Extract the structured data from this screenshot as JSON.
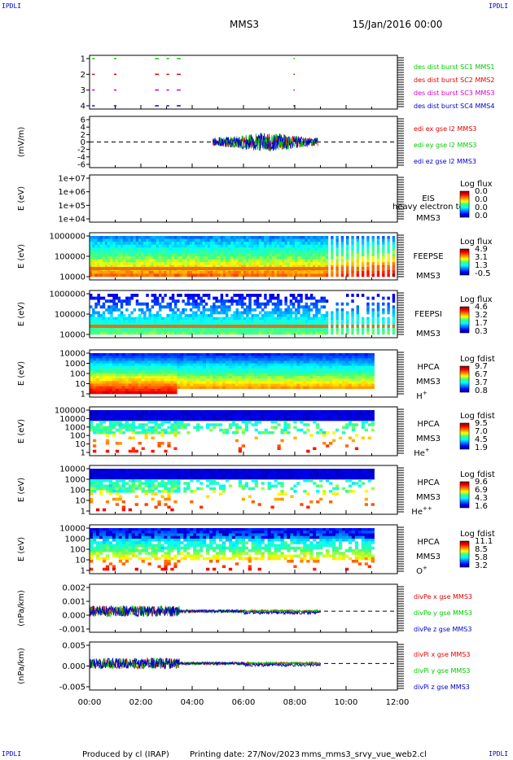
{
  "header": {
    "corner_label": "IPDLI",
    "spacecraft": "MMS3",
    "date": "15/Jan/2016 00:00"
  },
  "colors": {
    "red": "#e00000",
    "green": "#00c800",
    "blue": "#0000cc",
    "magenta": "#cc00cc",
    "dashed_line": "#000000"
  },
  "time_axis": {
    "ticks": [
      "00:00",
      "02:00",
      "04:00",
      "06:00",
      "08:00",
      "10:00",
      "12:00"
    ],
    "range_hours": [
      0,
      12
    ]
  },
  "footer": {
    "producer": "Produced by cl (IRAP)",
    "printing_date": "Printing date: 27/Nov/2023",
    "file": "mms_mms3_srvy_vue_web2.cl"
  },
  "chart_data": [
    {
      "id": "burst",
      "type": "scatter",
      "yticks": [
        "1",
        "2",
        "3",
        "4"
      ],
      "ylim": [
        0.5,
        4.5
      ],
      "series": [
        {
          "name": "des dist burst SC1 MMS1",
          "color": "#00c800",
          "y": 4
        },
        {
          "name": "des dist burst SC2 MMS2",
          "color": "#e00000",
          "y": 3
        },
        {
          "name": "des dist burst SC3 MMS3",
          "color": "#cc00cc",
          "y": 2
        },
        {
          "name": "des dist burst SC4 MMS4",
          "color": "#0000cc",
          "y": 1
        }
      ],
      "intervals_hours": [
        [
          0.1,
          0.2
        ],
        [
          0.95,
          1.05
        ],
        [
          2.55,
          2.7
        ],
        [
          3.0,
          3.1
        ],
        [
          3.4,
          3.55
        ],
        [
          7.95,
          8.0
        ]
      ]
    },
    {
      "id": "edi",
      "type": "line",
      "ylabel": "(mV/m)",
      "yticks": [
        "6",
        "4",
        "2",
        "0",
        "-2",
        "-4",
        "-6"
      ],
      "ylim": [
        -7,
        7
      ],
      "data_range_hours": [
        4.8,
        8.9
      ],
      "series": [
        {
          "name": "edi ex gse l2 MMS3",
          "color": "#e00000"
        },
        {
          "name": "edi ey gse l2 MMS3",
          "color": "#00c800"
        },
        {
          "name": "edi ez gse l2 MMS3",
          "color": "#0000cc"
        }
      ]
    },
    {
      "id": "eis",
      "type": "heatmap",
      "ylabel": "E (eV)",
      "yticks": [
        "1e+07",
        "1e+06",
        "1e+05",
        "1e+04"
      ],
      "instrument": "EIS",
      "spacecraft": "MMS3",
      "cbar_title": "Log flux",
      "cbar_values": [
        "0.0",
        "0.0",
        "0.0",
        "0.0"
      ],
      "note": "heavy electron to"
    },
    {
      "id": "feepse",
      "type": "heatmap",
      "ylabel": "E (eV)",
      "yticks": [
        "1000000",
        "100000",
        "10000"
      ],
      "instrument": "FEEPSE",
      "spacecraft": "MMS3",
      "cbar_title": "Log flux",
      "cbar_values": [
        "4.9",
        "3.1",
        "1.3",
        "-0.5"
      ]
    },
    {
      "id": "feepsi",
      "type": "heatmap",
      "ylabel": "E (eV)",
      "yticks": [
        "1000000",
        "100000",
        "10000"
      ],
      "instrument": "FEEPSI",
      "spacecraft": "MMS3",
      "cbar_title": "Log flux",
      "cbar_values": [
        "4.6",
        "3.2",
        "1.7",
        "0.3"
      ]
    },
    {
      "id": "hpca_h",
      "type": "heatmap",
      "ylabel": "E (eV)",
      "yticks": [
        "10000",
        "1000",
        "100",
        "10",
        "1"
      ],
      "instrument": "HPCA",
      "spacecraft": "MMS3",
      "species": "H",
      "charge": "+",
      "cbar_title": "Log fdist",
      "cbar_values": [
        "9.7",
        "6.7",
        "3.7",
        "0.8"
      ]
    },
    {
      "id": "hpca_he",
      "type": "heatmap",
      "ylabel": "E (eV)",
      "yticks": [
        "100000",
        "10000",
        "1000",
        "100",
        "10",
        "1"
      ],
      "instrument": "HPCA",
      "spacecraft": "MMS3",
      "species": "He",
      "charge": "+",
      "cbar_title": "Log fdist",
      "cbar_values": [
        "9.5",
        "7.0",
        "4.5",
        "1.9"
      ]
    },
    {
      "id": "hpca_hepp",
      "type": "heatmap",
      "ylabel": "E (eV)",
      "yticks": [
        "10000",
        "1000",
        "100",
        "10",
        "1"
      ],
      "instrument": "HPCA",
      "spacecraft": "MMS3",
      "species": "He",
      "charge": "++",
      "cbar_title": "Log fdist",
      "cbar_values": [
        "9.6",
        "6.9",
        "4.3",
        "1.6"
      ]
    },
    {
      "id": "hpca_o",
      "type": "heatmap",
      "ylabel": "E (eV)",
      "yticks": [
        "10000",
        "1000",
        "100",
        "10",
        "1"
      ],
      "instrument": "HPCA",
      "spacecraft": "MMS3",
      "species": "O",
      "charge": "+",
      "cbar_title": "Log fdist",
      "cbar_values": [
        "11.1",
        "8.5",
        "5.8",
        "3.2"
      ]
    },
    {
      "id": "divpe",
      "type": "line",
      "ylabel": "(nPa/km)",
      "yticks": [
        "0.002",
        "0.001",
        "0.000",
        "-0.001"
      ],
      "ylim": [
        -0.0015,
        0.002
      ],
      "data_range_hours": [
        0.0,
        9.0
      ],
      "series": [
        {
          "name": "divPe x gse MMS3",
          "color": "#e00000"
        },
        {
          "name": "divPe y gse MMS3",
          "color": "#00c800"
        },
        {
          "name": "divPe z gse MMS3",
          "color": "#0000cc"
        }
      ]
    },
    {
      "id": "divpi",
      "type": "line",
      "ylabel": "(nPa/km)",
      "yticks": [
        "0.005",
        "0.000",
        "-0.005"
      ],
      "ylim": [
        -0.009,
        0.007
      ],
      "data_range_hours": [
        0.0,
        9.0
      ],
      "series": [
        {
          "name": "divPi x gse MMS3",
          "color": "#e00000"
        },
        {
          "name": "divPi y gse MMS3",
          "color": "#00c800"
        },
        {
          "name": "divPi z gse MMS3",
          "color": "#0000cc"
        }
      ]
    }
  ]
}
